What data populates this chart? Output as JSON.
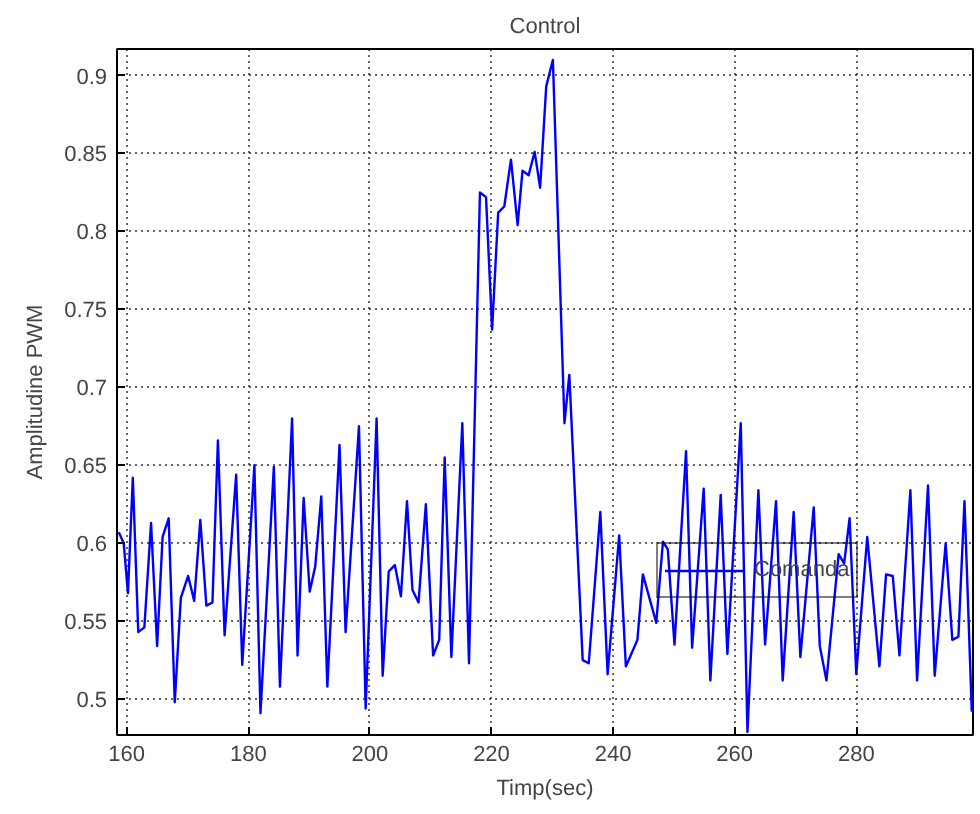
{
  "chart_data": {
    "type": "line",
    "title": "Control",
    "xlabel": "Timp(sec)",
    "ylabel": "Amplitudine PWM",
    "xlim": [
      158.4,
      299.2
    ],
    "ylim": [
      0.477,
      0.917
    ],
    "xticks": [
      160,
      180,
      200,
      220,
      240,
      260,
      280
    ],
    "yticks": [
      0.5,
      0.55,
      0.6,
      0.65,
      0.7,
      0.75,
      0.8,
      0.85,
      0.9
    ],
    "grid": true,
    "legend": "right",
    "line_style": "solid",
    "marker": "none",
    "series": [
      {
        "name": "Comanda",
        "color": "#0000ff",
        "x": [
          158.7,
          159.5,
          160.2,
          161,
          161.9,
          162.9,
          164,
          165,
          165.9,
          166.9,
          167.9,
          168.9,
          170.1,
          171.1,
          172.1,
          173.1,
          174.1,
          175,
          176.1,
          178,
          179,
          181,
          182,
          184.2,
          185.2,
          187.2,
          188.1,
          189.1,
          190.1,
          191,
          192,
          193,
          195,
          196,
          198.2,
          199.3,
          201.1,
          202.1,
          203.1,
          204.1,
          205.1,
          206.1,
          207,
          208,
          209.2,
          210.4,
          211.4,
          212.3,
          213.4,
          215.2,
          216.3,
          218.1,
          219.1,
          220.1,
          221.1,
          222.1,
          223.2,
          224.3,
          225.1,
          226.1,
          227.1,
          228,
          229,
          230.1,
          232,
          232.8,
          235,
          236,
          237.9,
          239.1,
          241,
          242.1,
          244,
          244.9,
          247.1,
          248.2,
          249,
          250.1,
          252,
          253,
          254.9,
          256,
          257.7,
          258.8,
          261,
          262.1,
          263.9,
          265,
          266.8,
          267.9,
          269.7,
          270.8,
          273,
          274,
          275.1,
          277.1,
          278,
          278.9,
          280,
          281.8,
          283.8,
          284.9,
          286,
          287.1,
          288.9,
          290,
          291.8,
          292.9,
          294.7,
          295.8,
          296.8,
          297.8,
          299
        ],
        "values": [
          0.607,
          0.6,
          0.568,
          0.642,
          0.543,
          0.546,
          0.613,
          0.534,
          0.604,
          0.616,
          0.498,
          0.565,
          0.579,
          0.563,
          0.615,
          0.56,
          0.562,
          0.666,
          0.541,
          0.644,
          0.522,
          0.65,
          0.491,
          0.649,
          0.508,
          0.68,
          0.528,
          0.629,
          0.569,
          0.585,
          0.63,
          0.508,
          0.663,
          0.543,
          0.675,
          0.494,
          0.68,
          0.515,
          0.582,
          0.586,
          0.566,
          0.627,
          0.57,
          0.562,
          0.625,
          0.528,
          0.538,
          0.655,
          0.527,
          0.677,
          0.523,
          0.825,
          0.822,
          0.737,
          0.812,
          0.816,
          0.846,
          0.804,
          0.839,
          0.836,
          0.851,
          0.828,
          0.893,
          0.91,
          0.677,
          0.708,
          0.525,
          0.523,
          0.62,
          0.516,
          0.605,
          0.521,
          0.538,
          0.58,
          0.549,
          0.601,
          0.596,
          0.535,
          0.659,
          0.533,
          0.635,
          0.512,
          0.631,
          0.529,
          0.677,
          0.479,
          0.634,
          0.535,
          0.627,
          0.512,
          0.62,
          0.527,
          0.623,
          0.534,
          0.512,
          0.593,
          0.587,
          0.616,
          0.516,
          0.604,
          0.521,
          0.58,
          0.579,
          0.528,
          0.634,
          0.512,
          0.637,
          0.515,
          0.6,
          0.538,
          0.54,
          0.627,
          0.492
        ]
      }
    ]
  }
}
